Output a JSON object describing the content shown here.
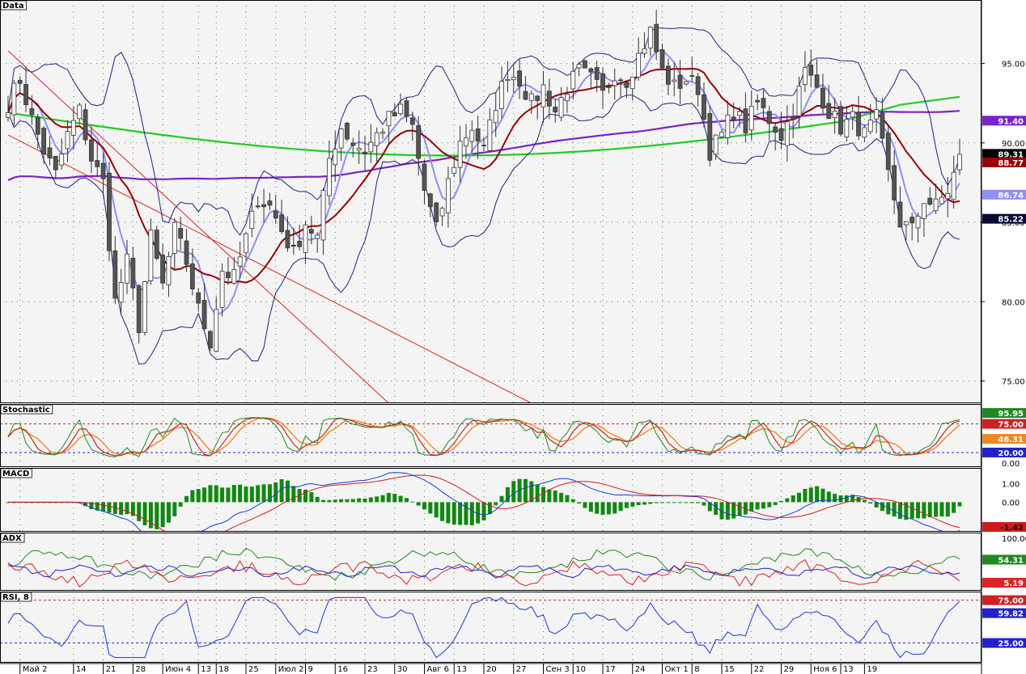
{
  "colors": {
    "background": "#f4f4f4",
    "pane_border": "#000000",
    "grid": "#3a8a3a",
    "candle_bull": "#ffffff",
    "candle_bear": "#555555",
    "ma_fast": "#8f8ff5",
    "ma_mid": "#990000",
    "ma_long_green": "#22cc22",
    "ma_long_purple": "#7a22cc",
    "bollinger": "#1a237e",
    "trendline": "#dd2222",
    "stoch_k": "#228822",
    "stoch_d": "#cc2222",
    "stoch_slow": "#ee8822",
    "macd_hist": "#118811",
    "macd_line": "#1a3ad6",
    "macd_signal": "#d11b1b",
    "adx_green": "#228822",
    "adx_red": "#dd2222",
    "adx_blue": "#2222cc",
    "rsi": "#1a3ad6",
    "level_red": "#cc2222",
    "level_blue": "#2222cc"
  },
  "chart_data": [
    {
      "title": "Data",
      "type": "candlestick",
      "yticks": [
        "95.00",
        "90.00",
        "85.00",
        "80.00",
        "75.00"
      ],
      "ylim": [
        73.6,
        99.0
      ],
      "price_marks": [
        {
          "label": "91.40",
          "value": 91.4,
          "color": "#7a22cc",
          "text_color": "#ffffff"
        },
        {
          "label": "89.31",
          "value": 89.31,
          "color": "#000000",
          "text_color": "#ffffff"
        },
        {
          "label": "88.77",
          "value": 88.77,
          "color": "#990000",
          "text_color": "#ffffff"
        },
        {
          "label": "86.74",
          "value": 86.74,
          "color": "#8f8ff5",
          "text_color": "#ffffff"
        },
        {
          "label": "85.22",
          "value": 85.22,
          "color": "#0a0a3a",
          "text_color": "#ffffff"
        }
      ],
      "close_anchors": [
        [
          0,
          92.5
        ],
        [
          2,
          94.0
        ],
        [
          4,
          91.5
        ],
        [
          6,
          89.5
        ],
        [
          8,
          88.0
        ],
        [
          10,
          90.5
        ],
        [
          12,
          92.0
        ],
        [
          14,
          89.0
        ],
        [
          16,
          87.5
        ],
        [
          18,
          80.0
        ],
        [
          20,
          82.5
        ],
        [
          22,
          78.5
        ],
        [
          24,
          84.0
        ],
        [
          26,
          81.0
        ],
        [
          28,
          84.5
        ],
        [
          30,
          82.5
        ],
        [
          32,
          79.5
        ],
        [
          34,
          77.5
        ],
        [
          36,
          82.0
        ],
        [
          38,
          81.5
        ],
        [
          40,
          84.0
        ],
        [
          42,
          86.5
        ],
        [
          44,
          86.0
        ],
        [
          46,
          84.5
        ],
        [
          48,
          83.0
        ],
        [
          50,
          85.0
        ],
        [
          52,
          84.0
        ],
        [
          54,
          89.0
        ],
        [
          56,
          91.0
        ],
        [
          58,
          90.0
        ],
        [
          60,
          89.5
        ],
        [
          62,
          90.5
        ],
        [
          64,
          91.5
        ],
        [
          66,
          92.0
        ],
        [
          68,
          91.0
        ],
        [
          70,
          87.0
        ],
        [
          72,
          84.5
        ],
        [
          74,
          87.5
        ],
        [
          76,
          90.0
        ],
        [
          78,
          91.0
        ],
        [
          80,
          89.5
        ],
        [
          82,
          92.5
        ],
        [
          84,
          94.5
        ],
        [
          86,
          94.0
        ],
        [
          88,
          92.5
        ],
        [
          90,
          93.5
        ],
        [
          92,
          92.0
        ],
        [
          94,
          93.5
        ],
        [
          96,
          94.5
        ],
        [
          98,
          94.0
        ],
        [
          100,
          93.0
        ],
        [
          102,
          94.5
        ],
        [
          104,
          94.0
        ],
        [
          106,
          95.5
        ],
        [
          108,
          97.0
        ],
        [
          110,
          94.5
        ],
        [
          112,
          93.5
        ],
        [
          114,
          94.0
        ],
        [
          116,
          93.5
        ],
        [
          118,
          89.5
        ],
        [
          120,
          90.5
        ],
        [
          122,
          92.0
        ],
        [
          124,
          91.0
        ],
        [
          126,
          92.5
        ],
        [
          128,
          91.5
        ],
        [
          130,
          90.5
        ],
        [
          132,
          92.0
        ],
        [
          134,
          94.5
        ],
        [
          136,
          93.5
        ],
        [
          138,
          92.0
        ],
        [
          140,
          91.0
        ],
        [
          142,
          91.5
        ],
        [
          144,
          90.5
        ],
        [
          146,
          91.5
        ],
        [
          148,
          88.0
        ],
        [
          150,
          85.0
        ],
        [
          152,
          84.5
        ],
        [
          154,
          86.5
        ],
        [
          156,
          86.0
        ],
        [
          158,
          87.0
        ],
        [
          160,
          89.0
        ]
      ],
      "overlays": [
        {
          "name": "ma_mid",
          "period": 10
        },
        {
          "name": "ma_fast",
          "period": 5
        },
        {
          "name": "ma_long_green",
          "period": 60
        },
        {
          "name": "ma_long_purple",
          "period": 40
        },
        {
          "name": "bollinger",
          "period": 10
        }
      ],
      "trendlines": [
        {
          "from": [
            0,
            90.5
          ],
          "to": [
            88,
            73.6
          ]
        },
        {
          "from": [
            0,
            95.8
          ],
          "to": [
            64,
            73.6
          ]
        }
      ]
    },
    {
      "title": "Stochastic",
      "type": "line",
      "yticks": [
        "0.00"
      ],
      "ylim": [
        -8,
        113
      ],
      "levels": [
        {
          "value": 75,
          "color": "#cc2222"
        },
        {
          "value": 20,
          "color": "#2222cc"
        }
      ],
      "price_marks": [
        {
          "label": "95.95",
          "value": 95.95,
          "color": "#228822",
          "text_color": "#ffffff"
        },
        {
          "label": "75.00",
          "value": 75,
          "color": "#cc2222",
          "text_color": "#ffffff"
        },
        {
          "label": "46.31",
          "value": 46.31,
          "color": "#ee8822",
          "text_color": "#ffffff"
        },
        {
          "label": "20.00",
          "value": 20,
          "color": "#2222cc",
          "text_color": "#ffffff"
        }
      ]
    },
    {
      "title": "MACD",
      "type": "bar",
      "yticks": [
        "1.00",
        "0.00"
      ],
      "ylim": [
        -1.6,
        1.85
      ],
      "price_marks": [
        {
          "label": "-1.42",
          "value": -1.42,
          "color": "#d11b1b",
          "text_color": "#111111"
        }
      ]
    },
    {
      "title": "ADX",
      "type": "line",
      "yticks": [
        "100.00"
      ],
      "ylim": [
        -12,
        112
      ],
      "price_marks": [
        {
          "label": "54.31",
          "value": 54.31,
          "color": "#228822",
          "text_color": "#ffffff"
        },
        {
          "label": "5.19",
          "value": 5.19,
          "color": "#dd2222",
          "text_color": "#ffffff"
        }
      ]
    },
    {
      "title": "RSI, 8",
      "type": "line",
      "yticks": [
        "25.00"
      ],
      "ylim": [
        2,
        85
      ],
      "levels": [
        {
          "value": 75,
          "color": "#cc2222"
        },
        {
          "value": 25,
          "color": "#2222cc"
        }
      ],
      "price_marks": [
        {
          "label": "75.00",
          "value": 75,
          "color": "#cc2222",
          "text_color": "#ffffff"
        },
        {
          "label": "59.82",
          "value": 59.82,
          "color": "#2222cc",
          "text_color": "#ffffff"
        },
        {
          "label": "25.00",
          "value": 25,
          "color": "#2222cc",
          "text_color": "#ffffff"
        }
      ]
    }
  ],
  "x_axis": {
    "labels": [
      {
        "text": "Май 2",
        "index": 2
      },
      {
        "text": "14",
        "index": 11
      },
      {
        "text": "21",
        "index": 16
      },
      {
        "text": "28",
        "index": 21
      },
      {
        "text": "Июн 4",
        "index": 26
      },
      {
        "text": "13",
        "index": 32
      },
      {
        "text": "18",
        "index": 35
      },
      {
        "text": "25",
        "index": 40
      },
      {
        "text": "Июл 2",
        "index": 45
      },
      {
        "text": "9",
        "index": 50
      },
      {
        "text": "16",
        "index": 55
      },
      {
        "text": "23",
        "index": 60
      },
      {
        "text": "30",
        "index": 65
      },
      {
        "text": "Авг 6",
        "index": 70
      },
      {
        "text": "13",
        "index": 75
      },
      {
        "text": "20",
        "index": 80
      },
      {
        "text": "27",
        "index": 85
      },
      {
        "text": "Сен 3",
        "index": 90
      },
      {
        "text": "10",
        "index": 95
      },
      {
        "text": "17",
        "index": 100
      },
      {
        "text": "24",
        "index": 105
      },
      {
        "text": "Окт 1",
        "index": 110
      },
      {
        "text": "8",
        "index": 115
      },
      {
        "text": "15",
        "index": 120
      },
      {
        "text": "22",
        "index": 125
      },
      {
        "text": "29",
        "index": 130
      },
      {
        "text": "Ноя 6",
        "index": 135
      },
      {
        "text": "13",
        "index": 140
      },
      {
        "text": "19",
        "index": 144
      }
    ]
  }
}
